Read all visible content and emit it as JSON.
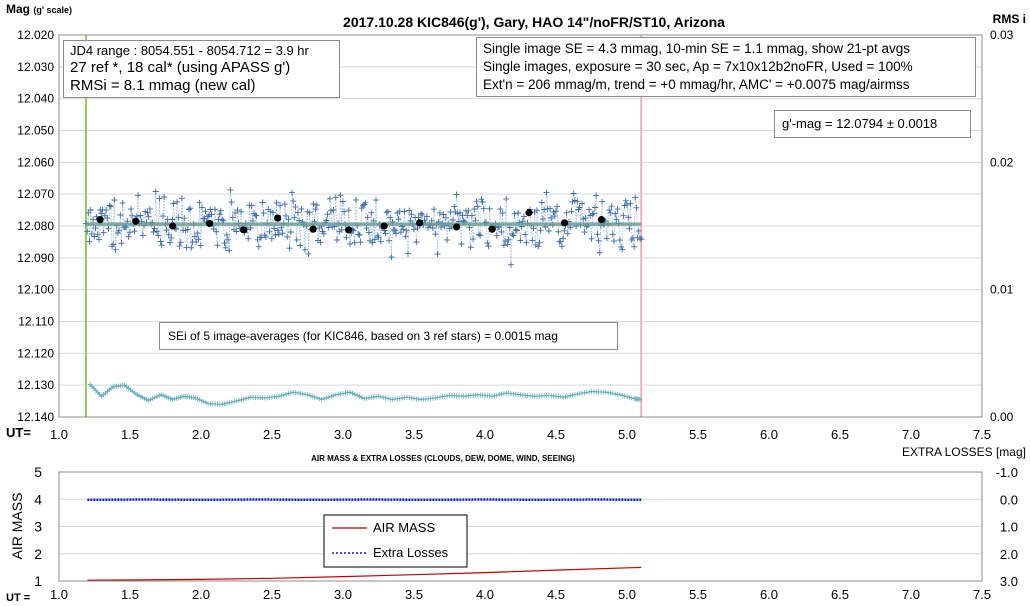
{
  "chart_data": [
    {
      "type": "scatter",
      "title": "2017.10.28  KIC846(g'),  Gary, HAO  14\"/noFR/ST10,  Arizona",
      "ylabel": "Mag",
      "ylabel_sub": "(g' scale)",
      "y2label": "RMS i",
      "xlabel": "UT=",
      "xlim": [
        1.0,
        7.5
      ],
      "ylim": [
        12.02,
        12.14
      ],
      "y_reversed": true,
      "y2lim": [
        0.0,
        0.03
      ],
      "x_ticks": [
        "1.0",
        "1.5",
        "2.0",
        "2.5",
        "3.0",
        "3.5",
        "4.0",
        "4.5",
        "5.0",
        "5.5",
        "6.0",
        "6.5",
        "7.0",
        "7.5"
      ],
      "y_ticks": [
        "12.020",
        "12.030",
        "12.040",
        "12.050",
        "12.060",
        "12.070",
        "12.080",
        "12.090",
        "12.100",
        "12.110",
        "12.120",
        "12.130",
        "12.140"
      ],
      "y2_ticks": [
        "0.03",
        "0.02",
        "0.01",
        "0.00"
      ],
      "grid": true,
      "fit_mag": 12.0794,
      "range_start_ut": 1.19,
      "range_end_ut": 5.1,
      "avg_points": [
        {
          "x": 1.29,
          "y": 12.078
        },
        {
          "x": 1.54,
          "y": 12.0785
        },
        {
          "x": 1.8,
          "y": 12.08
        },
        {
          "x": 2.06,
          "y": 12.0792
        },
        {
          "x": 2.3,
          "y": 12.0812
        },
        {
          "x": 2.54,
          "y": 12.0775
        },
        {
          "x": 2.79,
          "y": 12.081
        },
        {
          "x": 3.04,
          "y": 12.0812
        },
        {
          "x": 3.29,
          "y": 12.08
        },
        {
          "x": 3.54,
          "y": 12.079
        },
        {
          "x": 3.8,
          "y": 12.0803
        },
        {
          "x": 4.05,
          "y": 12.081
        },
        {
          "x": 4.31,
          "y": 12.0758
        },
        {
          "x": 4.56,
          "y": 12.079
        },
        {
          "x": 4.82,
          "y": 12.078
        }
      ],
      "rms_curve": [
        {
          "x": 1.22,
          "y": 12.1298
        },
        {
          "x": 1.3,
          "y": 12.1335
        },
        {
          "x": 1.38,
          "y": 12.1305
        },
        {
          "x": 1.46,
          "y": 12.13
        },
        {
          "x": 1.55,
          "y": 12.133
        },
        {
          "x": 1.63,
          "y": 12.1348
        },
        {
          "x": 1.72,
          "y": 12.133
        },
        {
          "x": 1.8,
          "y": 12.1345
        },
        {
          "x": 1.88,
          "y": 12.1335
        },
        {
          "x": 1.96,
          "y": 12.134
        },
        {
          "x": 2.05,
          "y": 12.1358
        },
        {
          "x": 2.15,
          "y": 12.136
        },
        {
          "x": 2.25,
          "y": 12.135
        },
        {
          "x": 2.35,
          "y": 12.1338
        },
        {
          "x": 2.45,
          "y": 12.134
        },
        {
          "x": 2.55,
          "y": 12.1335
        },
        {
          "x": 2.65,
          "y": 12.1322
        },
        {
          "x": 2.75,
          "y": 12.133
        },
        {
          "x": 2.85,
          "y": 12.1345
        },
        {
          "x": 2.95,
          "y": 12.133
        },
        {
          "x": 3.05,
          "y": 12.1322
        },
        {
          "x": 3.15,
          "y": 12.1342
        },
        {
          "x": 3.25,
          "y": 12.1335
        },
        {
          "x": 3.35,
          "y": 12.1345
        },
        {
          "x": 3.45,
          "y": 12.1338
        },
        {
          "x": 3.55,
          "y": 12.1345
        },
        {
          "x": 3.65,
          "y": 12.134
        },
        {
          "x": 3.75,
          "y": 12.1332
        },
        {
          "x": 3.85,
          "y": 12.1335
        },
        {
          "x": 3.95,
          "y": 12.133
        },
        {
          "x": 4.05,
          "y": 12.1335
        },
        {
          "x": 4.15,
          "y": 12.1325
        },
        {
          "x": 4.25,
          "y": 12.133
        },
        {
          "x": 4.35,
          "y": 12.1335
        },
        {
          "x": 4.45,
          "y": 12.1332
        },
        {
          "x": 4.55,
          "y": 12.1338
        },
        {
          "x": 4.65,
          "y": 12.1328
        },
        {
          "x": 4.75,
          "y": 12.132
        },
        {
          "x": 4.85,
          "y": 12.1322
        },
        {
          "x": 4.95,
          "y": 12.133
        },
        {
          "x": 5.05,
          "y": 12.1342
        },
        {
          "x": 5.1,
          "y": 12.1345
        }
      ],
      "annotations": {
        "jd_box": [
          "JD4 range : 8054.551 - 8054.712 =  3.9  hr",
          "27 ref *, 18 cal* (using APASS g')",
          "RMSi = 8.1 mmag (new cal)"
        ],
        "se_box": [
          "Single image SE = 4.3 mmag, 10-min SE = 1.1 mmag, show  21-pt avgs",
          "Single images, exposure = 30 sec, Ap = 7x10x12b2noFR,  Used = 100%",
          "Ext'n = 206 mmag/m, trend =  +0 mmag/hr, AMC' = +0.0075 mag/airmss"
        ],
        "gmag_box": "g'-mag = 12.0794 ± 0.0018",
        "sei_box": "SEi of 5 image-averages (for KIC846, based on 3 ref stars) = 0.0015  mag"
      },
      "colors": {
        "points": "#3b6aa8",
        "fit": "#6b9e96",
        "avg": "#000000",
        "rms": "#63aebd",
        "start_line": "#92d050",
        "end_line": "#f4b0b8"
      }
    },
    {
      "type": "line",
      "title": "AIR MASS & EXTRA LOSSES (CLOUDS, DEW, DOME, WIND, SEEING)",
      "ylabel": "AIR MASS",
      "y2label": "EXTRA LOSSES [mag]",
      "xlabel": "UT =",
      "xlim": [
        1.0,
        7.5
      ],
      "ylim": [
        1,
        5
      ],
      "y2lim": [
        -1.0,
        3.0
      ],
      "y2_reversed": true,
      "x_ticks": [
        "1.0",
        "1.5",
        "2.0",
        "2.5",
        "3.0",
        "3.5",
        "4.0",
        "4.5",
        "5.0",
        "5.5",
        "6.0",
        "6.5",
        "7.0",
        "7.5"
      ],
      "y_ticks": [
        "5",
        "4",
        "3",
        "2",
        "1"
      ],
      "y2_ticks": [
        "-1.0",
        "0.0",
        "1.0",
        "2.0",
        "3.0"
      ],
      "legend": [
        "AIR MASS",
        "Extra Losses"
      ],
      "legend_placement": "center",
      "series": [
        {
          "name": "AIR MASS",
          "color": "#c00000",
          "x": [
            1.2,
            2.0,
            2.5,
            3.0,
            3.5,
            4.0,
            4.5,
            5.1
          ],
          "values": [
            1.03,
            1.06,
            1.1,
            1.16,
            1.23,
            1.31,
            1.4,
            1.5
          ]
        },
        {
          "name": "Extra Losses",
          "color": "#0b1fbf",
          "x": [
            1.2,
            1.6,
            2.0,
            2.4,
            2.8,
            3.2,
            3.6,
            4.0,
            4.4,
            4.8,
            5.1
          ],
          "values": [
            0.02,
            0.01,
            0.02,
            0.01,
            0.02,
            0.01,
            0.02,
            0.01,
            0.02,
            0.01,
            0.02
          ]
        }
      ]
    }
  ]
}
